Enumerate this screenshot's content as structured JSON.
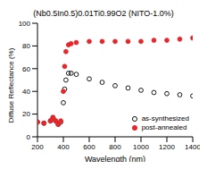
{
  "chart_data": {
    "type": "scatter",
    "title": "(Nb0.5In0.5)0.01Ti0.99O2 (NITO-1.0%)",
    "x_label": "Wavelength (nm)",
    "y_label": "Diffuse Reflectance (%)",
    "xlim": [
      200,
      1400
    ],
    "xticks": [
      200,
      400,
      600,
      800,
      1000,
      1200,
      1400
    ],
    "ylim": [
      0,
      100
    ],
    "yticks": [
      0,
      20,
      40,
      60,
      80,
      100
    ],
    "legend": "lower right",
    "grid": false,
    "series": [
      {
        "name": "as-synthesized",
        "color": "#000000",
        "marker": "open_circle",
        "x": [
          200,
          250,
          300,
          320,
          340,
          360,
          380,
          400,
          410,
          420,
          440,
          460,
          500,
          600,
          700,
          800,
          900,
          1000,
          1100,
          1200,
          1300,
          1400
        ],
        "values": [
          13,
          12,
          14,
          17,
          14,
          11,
          13,
          30,
          42,
          50,
          56,
          56,
          55,
          51,
          48,
          45,
          43,
          41,
          39,
          38,
          37,
          36
        ]
      },
      {
        "name": "post-annealed",
        "color": "#e8262a",
        "marker": "circle",
        "x": [
          200,
          250,
          300,
          320,
          340,
          360,
          380,
          400,
          410,
          420,
          440,
          460,
          500,
          600,
          700,
          800,
          900,
          1000,
          1100,
          1200,
          1300,
          1400
        ],
        "values": [
          13,
          12,
          14,
          17,
          14,
          11,
          14,
          40,
          62,
          75,
          81,
          82,
          83,
          84,
          84,
          84,
          84,
          84,
          85,
          85,
          86,
          87
        ]
      }
    ]
  }
}
